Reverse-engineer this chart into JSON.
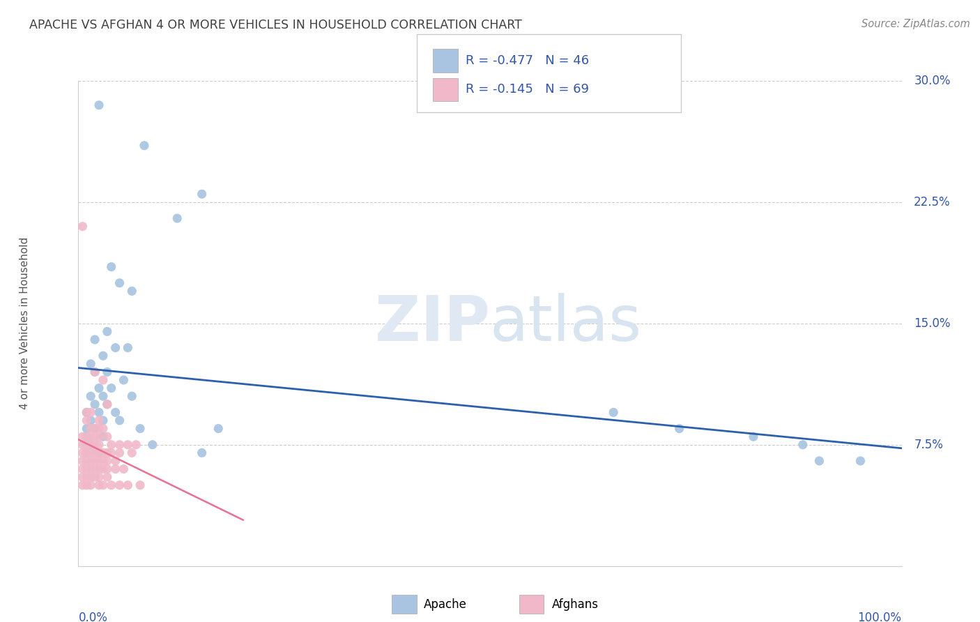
{
  "title": "APACHE VS AFGHAN 4 OR MORE VEHICLES IN HOUSEHOLD CORRELATION CHART",
  "source": "Source: ZipAtlas.com",
  "ylabel": "4 or more Vehicles in Household",
  "xlim": [
    0,
    100
  ],
  "ylim": [
    0,
    30
  ],
  "yticks": [
    0,
    7.5,
    15.0,
    22.5,
    30.0
  ],
  "yticklabels": [
    "",
    "7.5%",
    "15.0%",
    "22.5%",
    "30.0%"
  ],
  "legend_apache_R": "-0.477",
  "legend_apache_N": "46",
  "legend_afghan_R": "-0.145",
  "legend_afghan_N": "69",
  "apache_color": "#a8c4e0",
  "afghan_color": "#f0b8c8",
  "apache_line_color": "#2c5fad",
  "afghan_line_color": "#e87090",
  "title_color": "#404040",
  "label_color": "#3355aa",
  "apache_scatter": [
    [
      2.5,
      28.5
    ],
    [
      8.0,
      26.0
    ],
    [
      15.0,
      23.0
    ],
    [
      12.0,
      21.5
    ],
    [
      4.0,
      18.5
    ],
    [
      5.0,
      17.5
    ],
    [
      6.5,
      17.0
    ],
    [
      3.5,
      14.5
    ],
    [
      2.0,
      14.0
    ],
    [
      4.5,
      13.5
    ],
    [
      6.0,
      13.5
    ],
    [
      3.0,
      13.0
    ],
    [
      1.5,
      12.5
    ],
    [
      2.0,
      12.0
    ],
    [
      3.5,
      12.0
    ],
    [
      5.5,
      11.5
    ],
    [
      2.5,
      11.0
    ],
    [
      4.0,
      11.0
    ],
    [
      1.5,
      10.5
    ],
    [
      3.0,
      10.5
    ],
    [
      6.5,
      10.5
    ],
    [
      2.0,
      10.0
    ],
    [
      3.5,
      10.0
    ],
    [
      1.0,
      9.5
    ],
    [
      2.5,
      9.5
    ],
    [
      4.5,
      9.5
    ],
    [
      1.5,
      9.0
    ],
    [
      3.0,
      9.0
    ],
    [
      5.0,
      9.0
    ],
    [
      1.0,
      8.5
    ],
    [
      2.0,
      8.5
    ],
    [
      7.5,
      8.5
    ],
    [
      17.0,
      8.5
    ],
    [
      1.0,
      8.0
    ],
    [
      3.0,
      8.0
    ],
    [
      1.5,
      7.5
    ],
    [
      9.0,
      7.5
    ],
    [
      1.0,
      7.0
    ],
    [
      2.5,
      7.0
    ],
    [
      15.0,
      7.0
    ],
    [
      65.0,
      9.5
    ],
    [
      73.0,
      8.5
    ],
    [
      82.0,
      8.0
    ],
    [
      88.0,
      7.5
    ],
    [
      90.0,
      6.5
    ],
    [
      95.0,
      6.5
    ]
  ],
  "afghan_scatter": [
    [
      0.5,
      21.0
    ],
    [
      1.0,
      9.5
    ],
    [
      1.5,
      9.5
    ],
    [
      2.0,
      12.0
    ],
    [
      2.5,
      9.0
    ],
    [
      3.0,
      11.5
    ],
    [
      3.5,
      10.0
    ],
    [
      1.0,
      9.0
    ],
    [
      1.5,
      8.5
    ],
    [
      2.0,
      8.5
    ],
    [
      2.5,
      8.5
    ],
    [
      3.0,
      8.5
    ],
    [
      0.5,
      8.0
    ],
    [
      1.0,
      8.0
    ],
    [
      1.5,
      8.0
    ],
    [
      2.0,
      8.0
    ],
    [
      2.5,
      8.0
    ],
    [
      3.5,
      8.0
    ],
    [
      0.5,
      7.5
    ],
    [
      1.0,
      7.5
    ],
    [
      1.5,
      7.5
    ],
    [
      2.0,
      7.5
    ],
    [
      2.5,
      7.5
    ],
    [
      4.0,
      7.5
    ],
    [
      5.0,
      7.5
    ],
    [
      6.0,
      7.5
    ],
    [
      7.0,
      7.5
    ],
    [
      0.5,
      7.0
    ],
    [
      1.0,
      7.0
    ],
    [
      1.5,
      7.0
    ],
    [
      2.0,
      7.0
    ],
    [
      2.5,
      7.0
    ],
    [
      3.0,
      7.0
    ],
    [
      3.5,
      7.0
    ],
    [
      4.0,
      7.0
    ],
    [
      5.0,
      7.0
    ],
    [
      6.5,
      7.0
    ],
    [
      0.5,
      6.5
    ],
    [
      1.0,
      6.5
    ],
    [
      1.5,
      6.5
    ],
    [
      2.0,
      6.5
    ],
    [
      2.5,
      6.5
    ],
    [
      3.0,
      6.5
    ],
    [
      3.5,
      6.5
    ],
    [
      4.5,
      6.5
    ],
    [
      0.5,
      6.0
    ],
    [
      1.0,
      6.0
    ],
    [
      1.5,
      6.0
    ],
    [
      2.0,
      6.0
    ],
    [
      2.5,
      6.0
    ],
    [
      3.0,
      6.0
    ],
    [
      3.5,
      6.0
    ],
    [
      4.5,
      6.0
    ],
    [
      5.5,
      6.0
    ],
    [
      0.5,
      5.5
    ],
    [
      1.0,
      5.5
    ],
    [
      1.5,
      5.5
    ],
    [
      2.0,
      5.5
    ],
    [
      2.5,
      5.5
    ],
    [
      3.5,
      5.5
    ],
    [
      0.5,
      5.0
    ],
    [
      1.0,
      5.0
    ],
    [
      1.5,
      5.0
    ],
    [
      2.5,
      5.0
    ],
    [
      3.0,
      5.0
    ],
    [
      4.0,
      5.0
    ],
    [
      5.0,
      5.0
    ],
    [
      6.0,
      5.0
    ],
    [
      7.5,
      5.0
    ]
  ]
}
